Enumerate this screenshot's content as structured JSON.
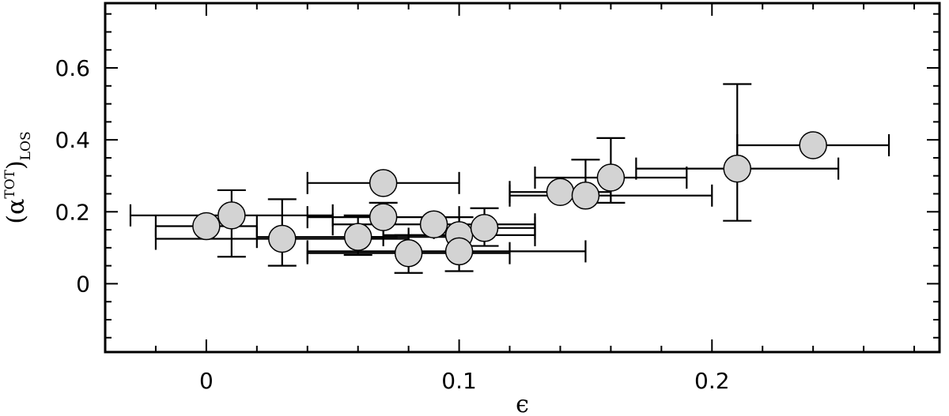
{
  "chart_data": {
    "type": "scatter",
    "title": "",
    "xlabel": "ϵ",
    "ylabel": {
      "base": "(α",
      "superscript": "TOT",
      "close": ")",
      "subscript": "LOS"
    },
    "xlim": [
      -0.04,
      0.29
    ],
    "ylim": [
      -0.19,
      0.78
    ],
    "x_ticks": [
      0,
      0.1,
      0.2
    ],
    "x_tick_labels": [
      "0",
      "0.1",
      "0.2"
    ],
    "y_ticks": [
      0,
      0.2,
      0.4,
      0.6
    ],
    "y_tick_labels": [
      "0",
      "0.2",
      "0.4",
      "0.6"
    ],
    "x_minor_step": 0.02,
    "y_minor_step": 0.05,
    "grid": false,
    "legend": "none",
    "marker_fill": "#d3d3d3",
    "marker_stroke": "#000000",
    "points": [
      {
        "x": 0.0,
        "y": 0.16,
        "xerr": [
          0.02,
          0.02
        ],
        "yerr": [
          0.0,
          0.0
        ]
      },
      {
        "x": 0.01,
        "y": 0.19,
        "xerr": [
          0.04,
          0.04
        ],
        "yerr": [
          0.115,
          0.07
        ]
      },
      {
        "x": 0.03,
        "y": 0.125,
        "xerr": [
          0.05,
          0.05
        ],
        "yerr": [
          0.075,
          0.11
        ]
      },
      {
        "x": 0.06,
        "y": 0.13,
        "xerr": [
          0.04,
          0.04
        ],
        "yerr": [
          0.05,
          0.06
        ]
      },
      {
        "x": 0.07,
        "y": 0.28,
        "xerr": [
          0.03,
          0.03
        ],
        "yerr": [
          0.0,
          0.0
        ]
      },
      {
        "x": 0.07,
        "y": 0.185,
        "xerr": [
          0.03,
          0.03
        ],
        "yerr": [
          0.055,
          0.04
        ]
      },
      {
        "x": 0.08,
        "y": 0.085,
        "xerr": [
          0.04,
          0.04
        ],
        "yerr": [
          0.055,
          0.05
        ]
      },
      {
        "x": 0.09,
        "y": 0.165,
        "xerr": [
          0.04,
          0.04
        ],
        "yerr": [
          0.0,
          0.0
        ]
      },
      {
        "x": 0.1,
        "y": 0.135,
        "xerr": [
          0.03,
          0.03
        ],
        "yerr": [
          0.05,
          0.05
        ]
      },
      {
        "x": 0.1,
        "y": 0.09,
        "xerr": [
          0.06,
          0.05
        ],
        "yerr": [
          0.055,
          0.05
        ]
      },
      {
        "x": 0.11,
        "y": 0.155,
        "xerr": [
          0.02,
          0.02
        ],
        "yerr": [
          0.05,
          0.055
        ]
      },
      {
        "x": 0.14,
        "y": 0.255,
        "xerr": [
          0.02,
          0.02
        ],
        "yerr": [
          0.0,
          0.0
        ]
      },
      {
        "x": 0.15,
        "y": 0.245,
        "xerr": [
          0.03,
          0.05
        ],
        "yerr": [
          0.0,
          0.1
        ]
      },
      {
        "x": 0.16,
        "y": 0.295,
        "xerr": [
          0.03,
          0.03
        ],
        "yerr": [
          0.07,
          0.11
        ]
      },
      {
        "x": 0.21,
        "y": 0.32,
        "xerr": [
          0.04,
          0.04
        ],
        "yerr": [
          0.145,
          0.235
        ]
      },
      {
        "x": 0.24,
        "y": 0.385,
        "xerr": [
          0.03,
          0.03
        ],
        "yerr": [
          0.0,
          0.0
        ]
      }
    ]
  }
}
